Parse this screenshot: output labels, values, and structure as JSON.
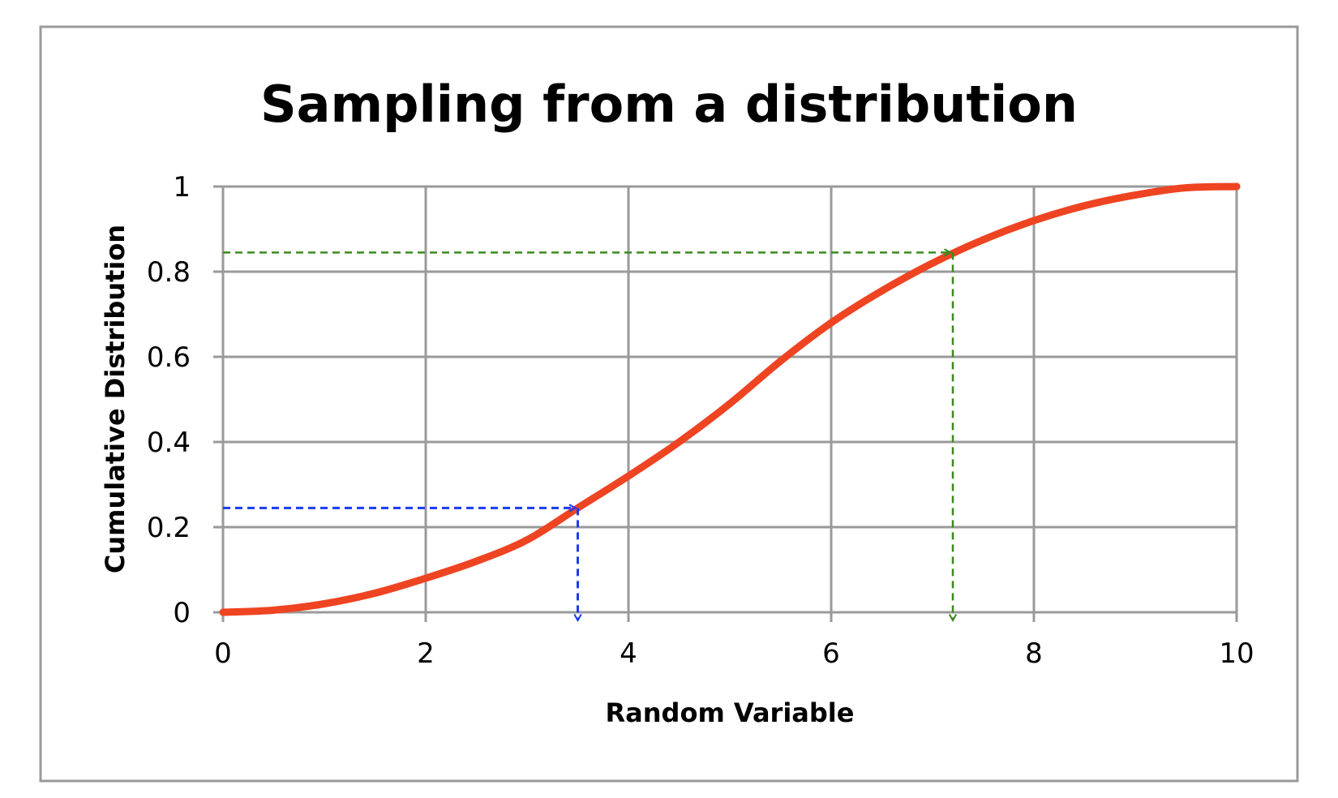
{
  "chart_data": {
    "type": "line",
    "title": "Sampling from a distribution",
    "xlabel": "Random Variable",
    "ylabel": "Cumulative Distribution",
    "xlim": [
      0,
      10
    ],
    "ylim": [
      0,
      1
    ],
    "xticks": [
      "0",
      "2",
      "4",
      "6",
      "8",
      "10"
    ],
    "yticks": [
      "0",
      "0.2",
      "0.4",
      "0.6",
      "0.8",
      "1"
    ],
    "grid": true,
    "legend": "none",
    "series": [
      {
        "color": "#ee4422",
        "x": [
          0,
          0.5,
          1,
          1.5,
          2,
          2.5,
          3,
          3.5,
          4,
          4.5,
          5,
          5.5,
          6,
          6.5,
          7,
          7.5,
          8,
          8.5,
          9,
          9.5,
          10
        ],
        "values": [
          0,
          0.005,
          0.02,
          0.045,
          0.08,
          0.12,
          0.17,
          0.245,
          0.32,
          0.4,
          0.49,
          0.59,
          0.68,
          0.755,
          0.82,
          0.875,
          0.92,
          0.955,
          0.98,
          0.997,
          1.0
        ]
      }
    ],
    "annotations": [
      {
        "color": "#1a3cf0",
        "x": 3.5,
        "y": 0.245
      },
      {
        "color": "#3a8a1e",
        "x": 7.2,
        "y": 0.845
      }
    ]
  }
}
